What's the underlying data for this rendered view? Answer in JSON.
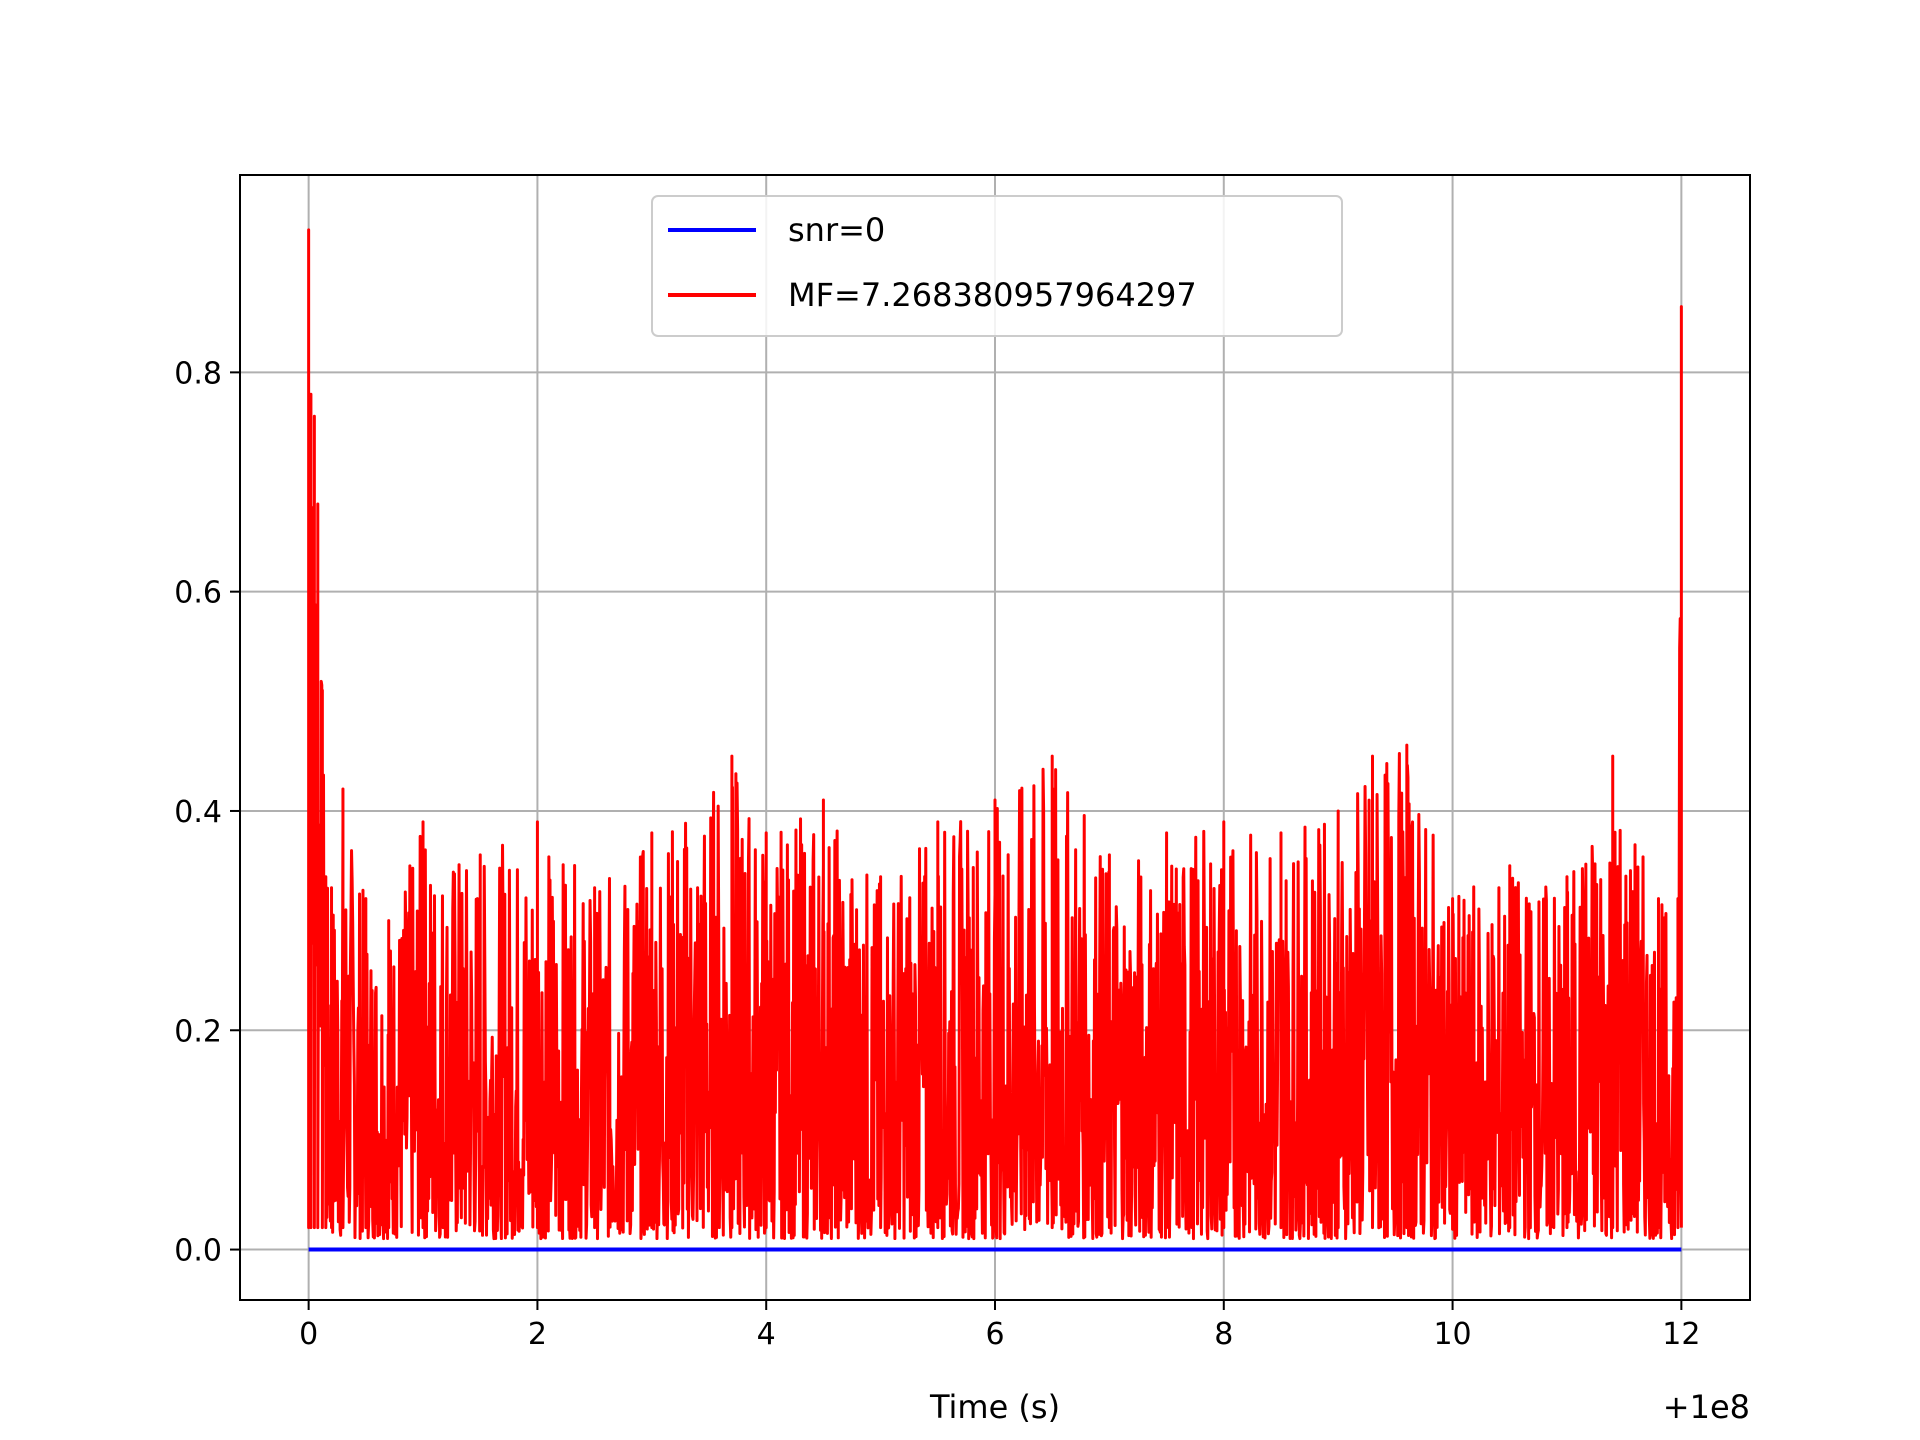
{
  "chart_data": {
    "type": "line",
    "title": "",
    "xlabel": "Time (s)",
    "ylabel": "",
    "x_offset_text": "+1e8",
    "xlim": [
      -0.6,
      12.6
    ],
    "ylim": [
      -0.046,
      0.98
    ],
    "x_ticks": [
      0,
      2,
      4,
      6,
      8,
      10,
      12
    ],
    "y_ticks": [
      0.0,
      0.2,
      0.4,
      0.6,
      0.8
    ],
    "x_tick_labels": [
      "0",
      "2",
      "4",
      "6",
      "8",
      "10",
      "12"
    ],
    "y_tick_labels": [
      "0.0",
      "0.2",
      "0.4",
      "0.6",
      "0.8"
    ],
    "grid": true,
    "legend_position": "upper center",
    "series": [
      {
        "name": "snr=0",
        "color": "#0000ff",
        "x": [
          0,
          12
        ],
        "y": [
          0.0,
          0.0
        ]
      },
      {
        "name": "MF=7.268380957964297",
        "color": "#ff0000",
        "x": [
          0.0,
          0.02,
          0.05,
          0.08,
          0.12,
          0.15,
          0.2,
          0.3,
          0.5,
          0.7,
          1.0,
          1.5,
          2.0,
          2.5,
          3.0,
          3.7,
          4.0,
          4.5,
          5.0,
          5.5,
          6.0,
          6.5,
          7.0,
          7.5,
          8.0,
          8.5,
          9.0,
          9.3,
          9.6,
          10.0,
          10.5,
          11.0,
          11.4,
          11.8,
          11.97,
          12.0
        ],
        "y": [
          0.93,
          0.78,
          0.76,
          0.68,
          0.51,
          0.34,
          0.33,
          0.42,
          0.32,
          0.3,
          0.39,
          0.36,
          0.39,
          0.33,
          0.38,
          0.45,
          0.38,
          0.41,
          0.34,
          0.39,
          0.41,
          0.45,
          0.36,
          0.38,
          0.39,
          0.38,
          0.4,
          0.45,
          0.46,
          0.32,
          0.35,
          0.34,
          0.45,
          0.32,
          0.32,
          0.86
        ]
      }
    ]
  }
}
